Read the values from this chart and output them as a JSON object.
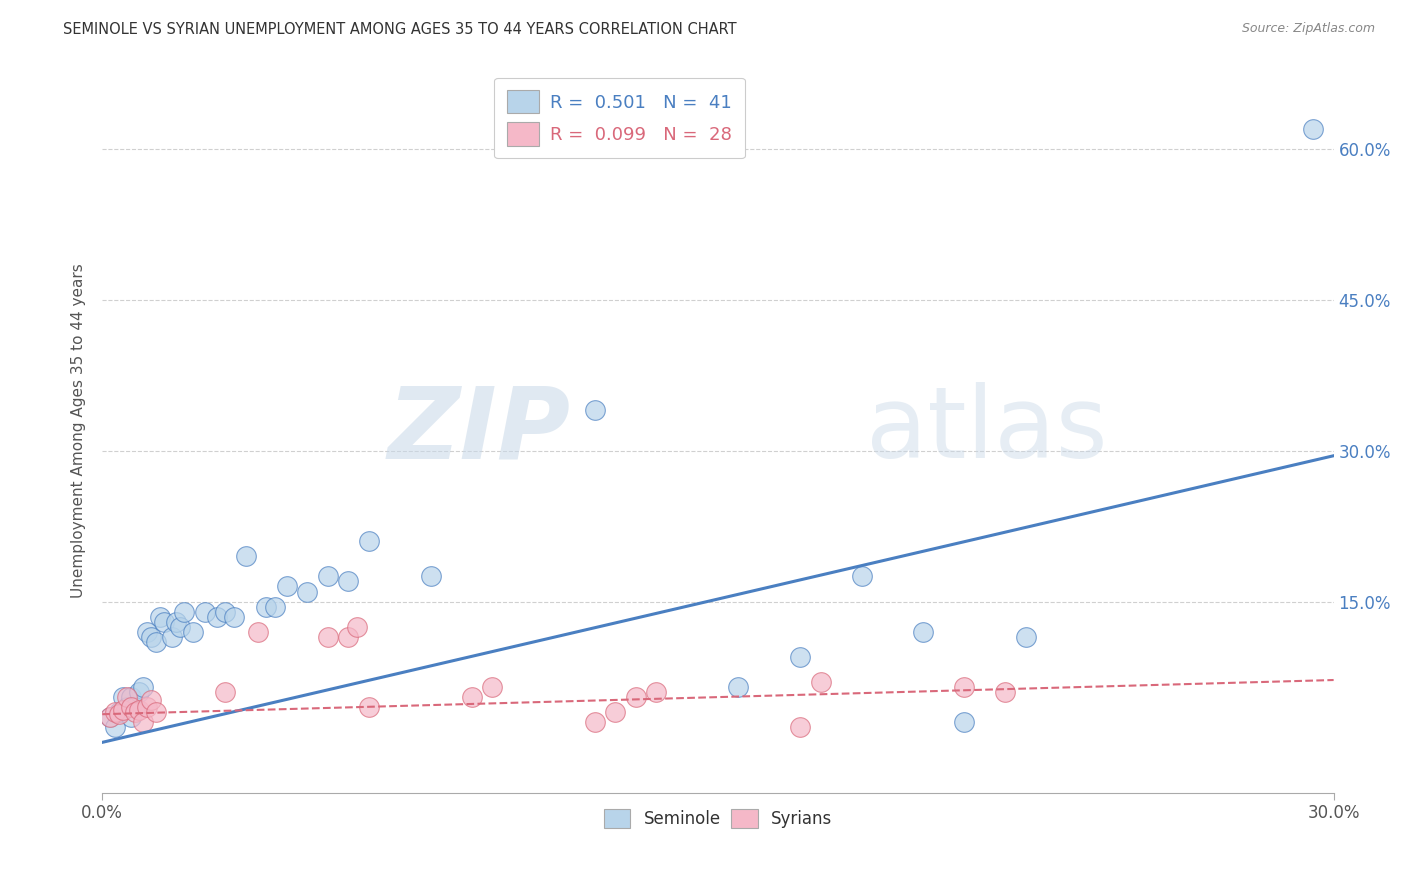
{
  "title": "SEMINOLE VS SYRIAN UNEMPLOYMENT AMONG AGES 35 TO 44 YEARS CORRELATION CHART",
  "source": "Source: ZipAtlas.com",
  "ylabel": "Unemployment Among Ages 35 to 44 years",
  "seminole_R": 0.501,
  "seminole_N": 41,
  "syrian_R": 0.099,
  "syrian_N": 28,
  "seminole_color": "#b8d4ea",
  "syrian_color": "#f5b8c8",
  "seminole_line_color": "#4a7fc1",
  "syrian_line_color": "#d9687a",
  "ytick_labels": [
    "60.0%",
    "45.0%",
    "30.0%",
    "15.0%"
  ],
  "ytick_values": [
    0.6,
    0.45,
    0.3,
    0.15
  ],
  "xlim": [
    0,
    0.3
  ],
  "ylim": [
    -0.04,
    0.68
  ],
  "blue_line_x0": 0.0,
  "blue_line_y0": 0.01,
  "blue_line_x1": 0.3,
  "blue_line_y1": 0.295,
  "pink_line_x0": 0.0,
  "pink_line_y0": 0.038,
  "pink_line_x1": 0.3,
  "pink_line_y1": 0.072,
  "seminole_x": [
    0.002,
    0.003,
    0.004,
    0.005,
    0.006,
    0.007,
    0.007,
    0.008,
    0.009,
    0.01,
    0.011,
    0.012,
    0.013,
    0.014,
    0.015,
    0.017,
    0.018,
    0.019,
    0.02,
    0.022,
    0.025,
    0.028,
    0.03,
    0.032,
    0.035,
    0.04,
    0.042,
    0.045,
    0.05,
    0.055,
    0.06,
    0.065,
    0.08,
    0.12,
    0.155,
    0.17,
    0.185,
    0.2,
    0.21,
    0.225,
    0.295
  ],
  "seminole_y": [
    0.035,
    0.025,
    0.04,
    0.055,
    0.045,
    0.035,
    0.055,
    0.045,
    0.06,
    0.065,
    0.12,
    0.115,
    0.11,
    0.135,
    0.13,
    0.115,
    0.13,
    0.125,
    0.14,
    0.12,
    0.14,
    0.135,
    0.14,
    0.135,
    0.195,
    0.145,
    0.145,
    0.165,
    0.16,
    0.175,
    0.17,
    0.21,
    0.175,
    0.34,
    0.065,
    0.095,
    0.175,
    0.12,
    0.03,
    0.115,
    0.62
  ],
  "syrian_x": [
    0.002,
    0.003,
    0.004,
    0.005,
    0.006,
    0.007,
    0.008,
    0.009,
    0.01,
    0.011,
    0.012,
    0.013,
    0.03,
    0.038,
    0.055,
    0.06,
    0.062,
    0.065,
    0.09,
    0.095,
    0.12,
    0.125,
    0.13,
    0.135,
    0.17,
    0.175,
    0.21,
    0.22
  ],
  "syrian_y": [
    0.035,
    0.04,
    0.038,
    0.042,
    0.055,
    0.045,
    0.04,
    0.042,
    0.03,
    0.045,
    0.052,
    0.04,
    0.06,
    0.12,
    0.115,
    0.115,
    0.125,
    0.045,
    0.055,
    0.065,
    0.03,
    0.04,
    0.055,
    0.06,
    0.025,
    0.07,
    0.065,
    0.06
  ],
  "watermark_zip": "ZIP",
  "watermark_atlas": "atlas",
  "background_color": "#ffffff",
  "grid_color": "#d0d0d0"
}
